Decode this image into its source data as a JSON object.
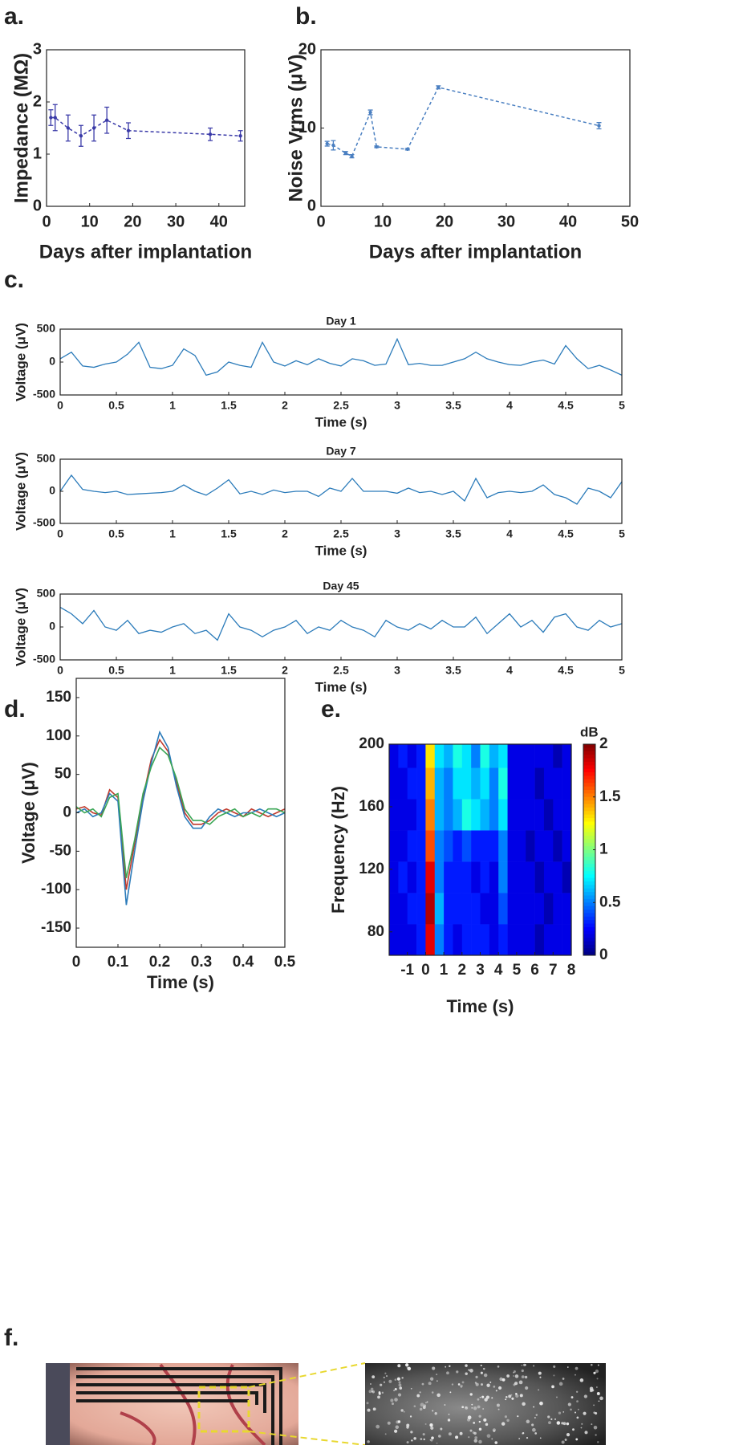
{
  "chart_data": [
    {
      "type": "errorline",
      "panel": "a.",
      "xlabel": "Days after implantation",
      "ylabel": "Impedance (MΩ)",
      "color": "#3a3aa8",
      "x": [
        1,
        2,
        5,
        8,
        11,
        14,
        19,
        38,
        45
      ],
      "values": [
        1.7,
        1.7,
        1.5,
        1.35,
        1.5,
        1.65,
        1.45,
        1.38,
        1.35
      ],
      "errors": [
        0.15,
        0.25,
        0.25,
        0.2,
        0.25,
        0.25,
        0.15,
        0.12,
        0.1
      ],
      "xlim": [
        0,
        46
      ],
      "xticks": [
        0,
        10,
        20,
        30,
        40
      ],
      "ylim": [
        0,
        3
      ],
      "yticks": [
        0,
        1,
        2,
        3
      ]
    },
    {
      "type": "errorline",
      "panel": "b.",
      "xlabel": "Days after implantation",
      "ylabel": "Noise Vrms (μV)",
      "color": "#4a7fc1",
      "x": [
        1,
        2,
        4,
        5,
        8,
        9,
        14,
        19,
        45
      ],
      "values": [
        8,
        7.8,
        6.8,
        6.4,
        12,
        7.6,
        7.3,
        15.2,
        10.3
      ],
      "errors": [
        0.3,
        0.6,
        0.2,
        0.2,
        0.3,
        0.1,
        0.1,
        0.2,
        0.4
      ],
      "xlim": [
        0,
        50
      ],
      "xticks": [
        0,
        10,
        20,
        30,
        40,
        50
      ],
      "ylim": [
        0,
        20
      ],
      "yticks": [
        0,
        10,
        20
      ]
    },
    {
      "type": "line",
      "panel": "c.",
      "title": "Day 1",
      "xlabel": "Time (s)",
      "ylabel": "Voltage (μV)",
      "color": "#2b7bba",
      "x": [
        0,
        0.1,
        0.2,
        0.3,
        0.4,
        0.5,
        0.6,
        0.7,
        0.8,
        0.9,
        1,
        1.1,
        1.2,
        1.3,
        1.4,
        1.5,
        1.6,
        1.7,
        1.8,
        1.9,
        2,
        2.1,
        2.2,
        2.3,
        2.4,
        2.5,
        2.6,
        2.7,
        2.8,
        2.9,
        3,
        3.1,
        3.2,
        3.3,
        3.4,
        3.5,
        3.6,
        3.7,
        3.8,
        3.9,
        4,
        4.1,
        4.2,
        4.3,
        4.4,
        4.5,
        4.6,
        4.7,
        4.8,
        4.9,
        5
      ],
      "values": [
        50,
        150,
        -60,
        -80,
        -30,
        0,
        120,
        300,
        -80,
        -100,
        -50,
        200,
        100,
        -200,
        -150,
        0,
        -50,
        -80,
        300,
        0,
        -60,
        20,
        -40,
        50,
        -20,
        -60,
        50,
        20,
        -50,
        -30,
        350,
        -40,
        -20,
        -50,
        -50,
        0,
        50,
        150,
        50,
        0,
        -40,
        -50,
        0,
        30,
        -30,
        250,
        50,
        -100,
        -50,
        -120,
        -200
      ],
      "xlim": [
        0,
        5
      ],
      "xticks": [
        0,
        0.5,
        1,
        1.5,
        2,
        2.5,
        3,
        3.5,
        4,
        4.5,
        5
      ],
      "ylim": [
        -500,
        500
      ],
      "yticks": [
        -500,
        0,
        500
      ]
    },
    {
      "type": "line",
      "title": "Day 7",
      "xlabel": "Time (s)",
      "ylabel": "Voltage (μV)",
      "color": "#2b7bba",
      "x": [
        0,
        0.1,
        0.2,
        0.3,
        0.4,
        0.5,
        0.6,
        0.7,
        0.8,
        0.9,
        1,
        1.1,
        1.2,
        1.3,
        1.4,
        1.5,
        1.6,
        1.7,
        1.8,
        1.9,
        2,
        2.1,
        2.2,
        2.3,
        2.4,
        2.5,
        2.6,
        2.7,
        2.8,
        2.9,
        3,
        3.1,
        3.2,
        3.3,
        3.4,
        3.5,
        3.6,
        3.7,
        3.8,
        3.9,
        4,
        4.1,
        4.2,
        4.3,
        4.4,
        4.5,
        4.6,
        4.7,
        4.8,
        4.9,
        5
      ],
      "values": [
        0,
        250,
        30,
        0,
        -20,
        0,
        -50,
        -40,
        -30,
        -20,
        0,
        100,
        0,
        -60,
        50,
        180,
        -40,
        0,
        -50,
        20,
        -20,
        0,
        0,
        -80,
        50,
        0,
        200,
        0,
        0,
        0,
        -30,
        50,
        -20,
        0,
        -50,
        0,
        -150,
        200,
        -100,
        -20,
        0,
        -20,
        0,
        100,
        -50,
        -100,
        -200,
        50,
        0,
        -100,
        150
      ],
      "xlim": [
        0,
        5
      ],
      "xticks": [
        0,
        0.5,
        1,
        1.5,
        2,
        2.5,
        3,
        3.5,
        4,
        4.5,
        5
      ],
      "ylim": [
        -500,
        500
      ],
      "yticks": [
        -500,
        0,
        500
      ]
    },
    {
      "type": "line",
      "title": "Day 45",
      "xlabel": "Time (s)",
      "ylabel": "Voltage (μV)",
      "color": "#2b7bba",
      "x": [
        0,
        0.1,
        0.2,
        0.3,
        0.4,
        0.5,
        0.6,
        0.7,
        0.8,
        0.9,
        1,
        1.1,
        1.2,
        1.3,
        1.4,
        1.5,
        1.6,
        1.7,
        1.8,
        1.9,
        2,
        2.1,
        2.2,
        2.3,
        2.4,
        2.5,
        2.6,
        2.7,
        2.8,
        2.9,
        3,
        3.1,
        3.2,
        3.3,
        3.4,
        3.5,
        3.6,
        3.7,
        3.8,
        3.9,
        4,
        4.1,
        4.2,
        4.3,
        4.4,
        4.5,
        4.6,
        4.7,
        4.8,
        4.9,
        5
      ],
      "values": [
        300,
        200,
        50,
        250,
        0,
        -50,
        100,
        -100,
        -50,
        -80,
        0,
        50,
        -100,
        -50,
        -200,
        200,
        0,
        -50,
        -150,
        -50,
        0,
        100,
        -100,
        0,
        -50,
        100,
        0,
        -50,
        -150,
        100,
        0,
        -50,
        50,
        -30,
        100,
        0,
        0,
        150,
        -100,
        50,
        200,
        0,
        100,
        -80,
        150,
        200,
        0,
        -50,
        100,
        0,
        50
      ],
      "xlim": [
        0,
        5
      ],
      "xticks": [
        0,
        0.5,
        1,
        1.5,
        2,
        2.5,
        3,
        3.5,
        4,
        4.5,
        5
      ],
      "ylim": [
        -500,
        500
      ],
      "yticks": [
        -500,
        0,
        500
      ]
    },
    {
      "type": "multiline",
      "panel": "d.",
      "xlabel": "Time (s)",
      "ylabel": "Voltage (μV)",
      "x": [
        0,
        0.02,
        0.04,
        0.06,
        0.08,
        0.1,
        0.12,
        0.14,
        0.16,
        0.18,
        0.2,
        0.22,
        0.24,
        0.26,
        0.28,
        0.3,
        0.32,
        0.34,
        0.36,
        0.38,
        0.4,
        0.42,
        0.44,
        0.46,
        0.48,
        0.5
      ],
      "series": [
        {
          "color": "#c0392b",
          "values": [
            5,
            8,
            0,
            -3,
            30,
            20,
            -100,
            -40,
            20,
            70,
            95,
            80,
            40,
            0,
            -15,
            -15,
            -10,
            0,
            5,
            0,
            -5,
            5,
            0,
            -5,
            0,
            5
          ]
        },
        {
          "color": "#2b7bba",
          "values": [
            0,
            5,
            -5,
            0,
            25,
            15,
            -120,
            -50,
            15,
            65,
            105,
            85,
            35,
            -5,
            -20,
            -20,
            -5,
            5,
            0,
            -5,
            0,
            0,
            5,
            0,
            -5,
            0
          ]
        },
        {
          "color": "#3aa655",
          "values": [
            8,
            0,
            5,
            -5,
            20,
            25,
            -85,
            -35,
            25,
            60,
            85,
            75,
            45,
            5,
            -10,
            -10,
            -15,
            -5,
            0,
            5,
            -5,
            0,
            -5,
            5,
            5,
            0
          ]
        }
      ],
      "xlim": [
        0,
        0.5
      ],
      "xticks": [
        0,
        0.1,
        0.2,
        0.3,
        0.4,
        0.5
      ],
      "ylim": [
        -175,
        175
      ],
      "yticks": [
        -150,
        -100,
        -50,
        0,
        50,
        100,
        150
      ]
    },
    {
      "type": "heatmap",
      "panel": "e.",
      "xlabel": "Time (s)",
      "ylabel": "Frequency (Hz)",
      "colorbar_label": "dB",
      "colormap": "jet",
      "xbins": [
        -2,
        -1.5,
        -1,
        -0.5,
        0,
        0.5,
        1,
        1.5,
        2,
        2.5,
        3,
        3.5,
        4,
        4.5,
        5,
        5.5,
        6,
        6.5,
        7,
        7.5,
        8
      ],
      "ybins": [
        65,
        85,
        105,
        125,
        145,
        165,
        185,
        200
      ],
      "z": [
        [
          0.2,
          0.2,
          0.2,
          0.3,
          1.8,
          0.5,
          0.3,
          0.2,
          0.3,
          0.3,
          0.3,
          0.2,
          0.3,
          0.2,
          0.2,
          0.2,
          0.1,
          0.2,
          0.2,
          0.2
        ],
        [
          0.2,
          0.2,
          0.3,
          0.3,
          1.9,
          0.6,
          0.3,
          0.3,
          0.3,
          0.3,
          0.2,
          0.2,
          0.4,
          0.2,
          0.2,
          0.2,
          0.2,
          0.1,
          0.2,
          0.2
        ],
        [
          0.2,
          0.3,
          0.2,
          0.3,
          1.8,
          0.5,
          0.3,
          0.3,
          0.3,
          0.2,
          0.3,
          0.2,
          0.5,
          0.2,
          0.2,
          0.2,
          0.1,
          0.2,
          0.2,
          0.1
        ],
        [
          0.2,
          0.2,
          0.3,
          0.3,
          1.6,
          0.5,
          0.4,
          0.3,
          0.4,
          0.3,
          0.3,
          0.3,
          0.5,
          0.2,
          0.2,
          0.1,
          0.2,
          0.2,
          0.1,
          0.2
        ],
        [
          0.2,
          0.2,
          0.2,
          0.3,
          1.5,
          0.6,
          0.5,
          0.6,
          0.8,
          0.7,
          0.6,
          0.5,
          0.7,
          0.2,
          0.2,
          0.2,
          0.2,
          0.1,
          0.2,
          0.2
        ],
        [
          0.2,
          0.2,
          0.3,
          0.3,
          1.4,
          0.6,
          0.5,
          0.7,
          0.7,
          0.6,
          0.7,
          0.5,
          0.8,
          0.2,
          0.2,
          0.2,
          0.1,
          0.2,
          0.2,
          0.2
        ],
        [
          0.2,
          0.3,
          0.2,
          0.3,
          1.3,
          0.7,
          0.6,
          0.8,
          0.7,
          0.5,
          0.8,
          0.6,
          0.7,
          0.2,
          0.2,
          0.2,
          0.2,
          0.2,
          0.1,
          0.2
        ]
      ],
      "xlim": [
        -2,
        8
      ],
      "xticks": [
        -1,
        0,
        1,
        2,
        3,
        4,
        5,
        6,
        7,
        8
      ],
      "ylim": [
        65,
        200
      ],
      "yticks": [
        80,
        120,
        160,
        200
      ],
      "zlim": [
        0,
        2
      ],
      "zticks": [
        0,
        0.5,
        1,
        1.5,
        2
      ]
    }
  ],
  "panel_f": {
    "label": "f."
  }
}
